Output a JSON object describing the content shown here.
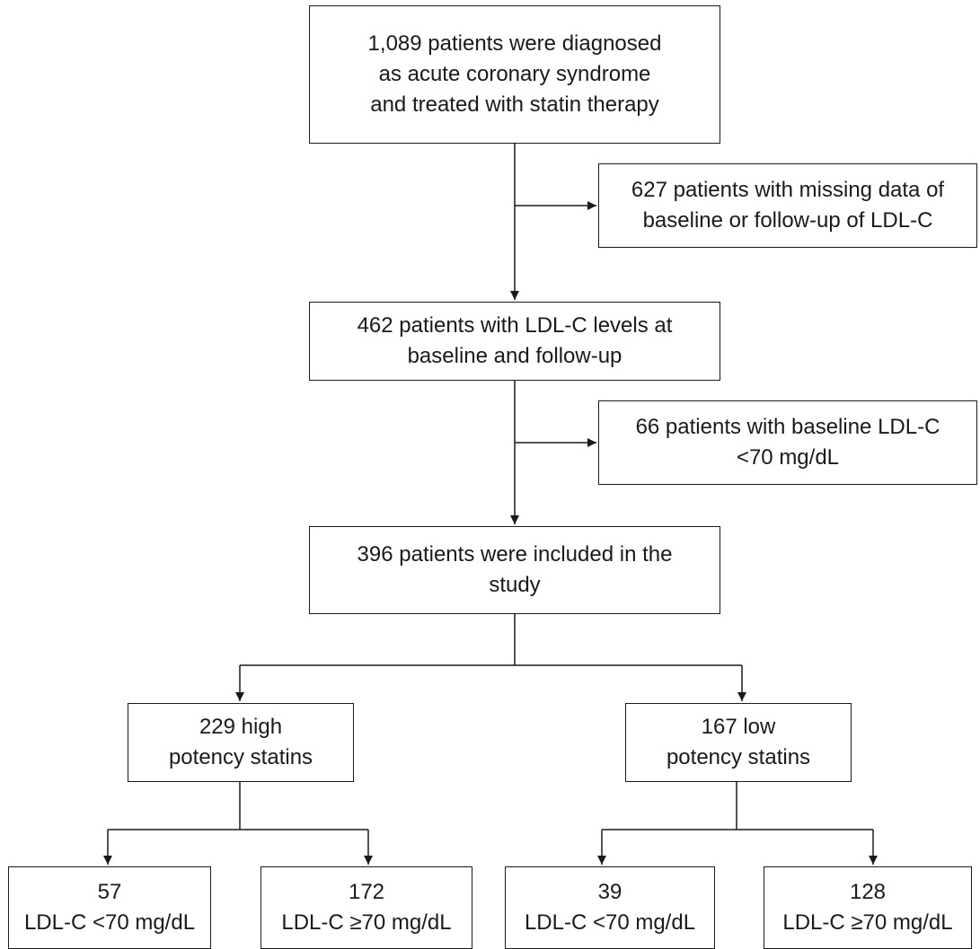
{
  "colors": {
    "line": "#1a1a1a",
    "background": "#ffffff"
  },
  "boxes": {
    "diagnosed": [
      "1,089 patients were diagnosed",
      "as acute coronary syndrome",
      "and treated with statin therapy"
    ],
    "excluded_missing": [
      "627 patients with missing data of",
      "baseline or follow-up of LDL-C"
    ],
    "with_levels": [
      "462 patients with LDL-C levels at",
      "baseline and follow-up"
    ],
    "excluded_low": [
      "66 patients with baseline LDL-C",
      "<70 mg/dL"
    ],
    "included": [
      "396 patients were included in the",
      "study"
    ],
    "high_potency": [
      "229 high",
      "potency statins"
    ],
    "low_potency": [
      "167 low",
      "potency statins"
    ],
    "high_under70": [
      "57",
      "LDL-C <70 mg/dL"
    ],
    "high_over70": [
      "172",
      "LDL-C ≥70 mg/dL"
    ],
    "low_under70": [
      "39",
      "LDL-C <70 mg/dL"
    ],
    "low_over70": [
      "128",
      "LDL-C ≥70 mg/dL"
    ]
  }
}
